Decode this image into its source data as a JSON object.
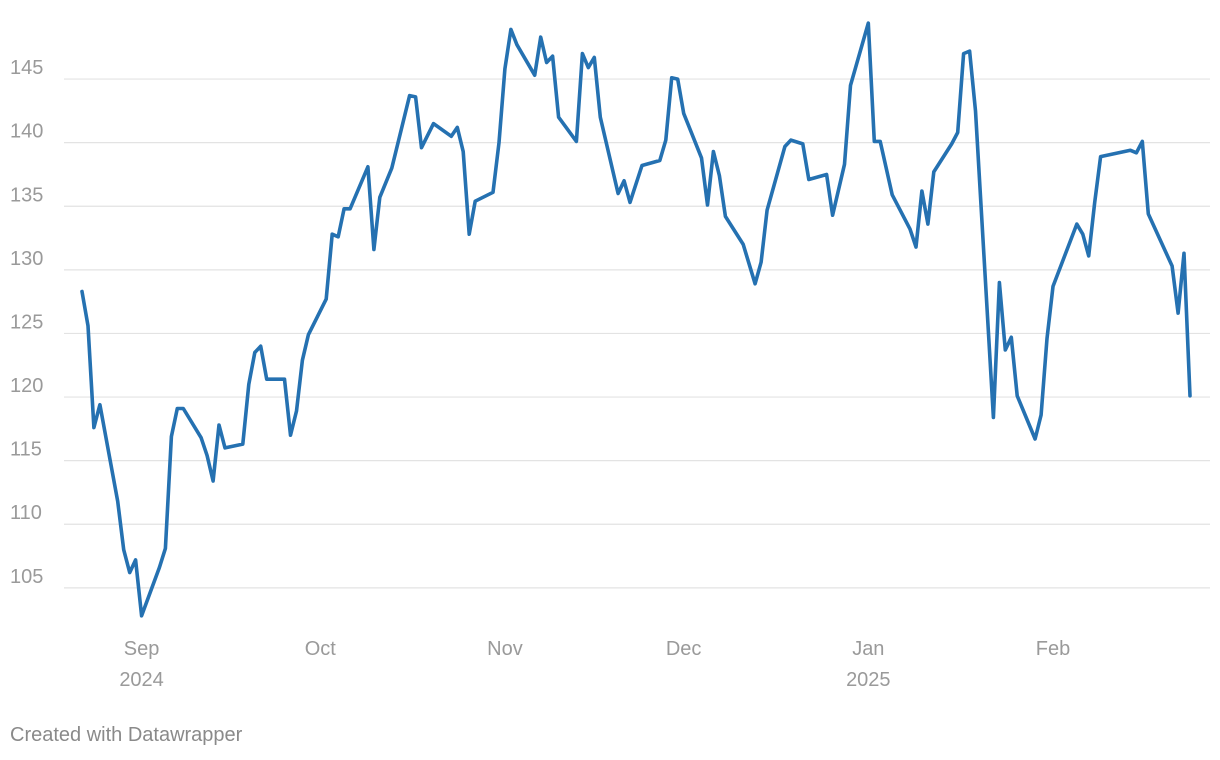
{
  "chart_data": {
    "type": "line",
    "title": "",
    "xlabel": "",
    "ylabel": "",
    "ylim": [
      102,
      149.8
    ],
    "xlim": [
      "2024-08-21",
      "2025-02-27"
    ],
    "grid": true,
    "legend": "none",
    "colors": {
      "line": "#2571b1",
      "grid": "#e3e3e3",
      "tick_text": "#9a9a9a"
    },
    "y_ticks": [
      105,
      110,
      115,
      120,
      125,
      130,
      135,
      140,
      145
    ],
    "x_ticks": [
      {
        "date": "2024-09-01",
        "label": "Sep",
        "sublabel": "2024"
      },
      {
        "date": "2024-10-01",
        "label": "Oct",
        "sublabel": ""
      },
      {
        "date": "2024-11-01",
        "label": "Nov",
        "sublabel": ""
      },
      {
        "date": "2024-12-01",
        "label": "Dec",
        "sublabel": ""
      },
      {
        "date": "2025-01-01",
        "label": "Jan",
        "sublabel": "2025"
      },
      {
        "date": "2025-02-01",
        "label": "Feb",
        "sublabel": ""
      }
    ],
    "series": [
      {
        "points": [
          [
            "2024-08-22",
            128.3
          ],
          [
            "2024-08-23",
            125.6
          ],
          [
            "2024-08-24",
            117.6
          ],
          [
            "2024-08-25",
            119.4
          ],
          [
            "2024-08-28",
            111.8
          ],
          [
            "2024-08-29",
            108.0
          ],
          [
            "2024-08-30",
            106.2
          ],
          [
            "2024-08-31",
            107.2
          ],
          [
            "2024-09-01",
            102.8
          ],
          [
            "2024-09-04",
            106.6
          ],
          [
            "2024-09-05",
            108.1
          ],
          [
            "2024-09-06",
            116.9
          ],
          [
            "2024-09-07",
            119.1
          ],
          [
            "2024-09-08",
            119.1
          ],
          [
            "2024-09-11",
            116.8
          ],
          [
            "2024-09-12",
            115.4
          ],
          [
            "2024-09-13",
            113.4
          ],
          [
            "2024-09-14",
            117.8
          ],
          [
            "2024-09-15",
            116.0
          ],
          [
            "2024-09-18",
            116.3
          ],
          [
            "2024-09-19",
            121.0
          ],
          [
            "2024-09-20",
            123.5
          ],
          [
            "2024-09-21",
            124.0
          ],
          [
            "2024-09-22",
            121.4
          ],
          [
            "2024-09-25",
            121.4
          ],
          [
            "2024-09-26",
            117.0
          ],
          [
            "2024-09-27",
            118.9
          ],
          [
            "2024-09-28",
            122.9
          ],
          [
            "2024-09-29",
            124.9
          ],
          [
            "2024-10-02",
            127.7
          ],
          [
            "2024-10-03",
            132.8
          ],
          [
            "2024-10-04",
            132.6
          ],
          [
            "2024-10-05",
            134.8
          ],
          [
            "2024-10-06",
            134.8
          ],
          [
            "2024-10-09",
            138.1
          ],
          [
            "2024-10-10",
            131.6
          ],
          [
            "2024-10-11",
            135.7
          ],
          [
            "2024-10-13",
            138.0
          ],
          [
            "2024-10-16",
            143.7
          ],
          [
            "2024-10-17",
            143.6
          ],
          [
            "2024-10-18",
            139.6
          ],
          [
            "2024-10-20",
            141.5
          ],
          [
            "2024-10-23",
            140.5
          ],
          [
            "2024-10-24",
            141.2
          ],
          [
            "2024-10-25",
            139.3
          ],
          [
            "2024-10-26",
            132.8
          ],
          [
            "2024-10-27",
            135.4
          ],
          [
            "2024-10-30",
            136.1
          ],
          [
            "2024-10-31",
            140.0
          ],
          [
            "2024-11-01",
            145.8
          ],
          [
            "2024-11-02",
            148.9
          ],
          [
            "2024-11-03",
            147.7
          ],
          [
            "2024-11-06",
            145.3
          ],
          [
            "2024-11-07",
            148.3
          ],
          [
            "2024-11-08",
            146.3
          ],
          [
            "2024-11-09",
            146.8
          ],
          [
            "2024-11-10",
            142.0
          ],
          [
            "2024-11-13",
            140.1
          ],
          [
            "2024-11-14",
            147.0
          ],
          [
            "2024-11-15",
            145.9
          ],
          [
            "2024-11-16",
            146.7
          ],
          [
            "2024-11-17",
            142.0
          ],
          [
            "2024-11-20",
            136.0
          ],
          [
            "2024-11-21",
            137.0
          ],
          [
            "2024-11-22",
            135.3
          ],
          [
            "2024-11-24",
            138.2
          ],
          [
            "2024-11-27",
            138.6
          ],
          [
            "2024-11-28",
            140.2
          ],
          [
            "2024-11-29",
            145.1
          ],
          [
            "2024-11-30",
            145.0
          ],
          [
            "2024-12-01",
            142.3
          ],
          [
            "2024-12-04",
            138.8
          ],
          [
            "2024-12-05",
            135.1
          ],
          [
            "2024-12-06",
            139.3
          ],
          [
            "2024-12-07",
            137.4
          ],
          [
            "2024-12-08",
            134.2
          ],
          [
            "2024-12-11",
            132.0
          ],
          [
            "2024-12-13",
            128.9
          ],
          [
            "2024-12-14",
            130.6
          ],
          [
            "2024-12-15",
            134.7
          ],
          [
            "2024-12-18",
            139.7
          ],
          [
            "2024-12-19",
            140.2
          ],
          [
            "2024-12-21",
            139.9
          ],
          [
            "2024-12-22",
            137.1
          ],
          [
            "2024-12-25",
            137.5
          ],
          [
            "2024-12-26",
            134.3
          ],
          [
            "2024-12-28",
            138.3
          ],
          [
            "2024-12-29",
            144.5
          ],
          [
            "2025-01-01",
            149.4
          ],
          [
            "2025-01-02",
            140.1
          ],
          [
            "2025-01-03",
            140.1
          ],
          [
            "2025-01-05",
            135.9
          ],
          [
            "2025-01-08",
            133.2
          ],
          [
            "2025-01-09",
            131.8
          ],
          [
            "2025-01-10",
            136.2
          ],
          [
            "2025-01-11",
            133.6
          ],
          [
            "2025-01-12",
            137.7
          ],
          [
            "2025-01-15",
            139.9
          ],
          [
            "2025-01-16",
            140.8
          ],
          [
            "2025-01-17",
            147.0
          ],
          [
            "2025-01-18",
            147.2
          ],
          [
            "2025-01-19",
            142.5
          ],
          [
            "2025-01-22",
            118.4
          ],
          [
            "2025-01-23",
            129.0
          ],
          [
            "2025-01-24",
            123.7
          ],
          [
            "2025-01-25",
            124.7
          ],
          [
            "2025-01-26",
            120.1
          ],
          [
            "2025-01-29",
            116.7
          ],
          [
            "2025-01-30",
            118.6
          ],
          [
            "2025-01-31",
            124.6
          ],
          [
            "2025-02-01",
            128.7
          ],
          [
            "2025-02-05",
            133.6
          ],
          [
            "2025-02-06",
            132.8
          ],
          [
            "2025-02-07",
            131.1
          ],
          [
            "2025-02-08",
            135.3
          ],
          [
            "2025-02-09",
            138.9
          ],
          [
            "2025-02-14",
            139.4
          ],
          [
            "2025-02-15",
            139.2
          ],
          [
            "2025-02-16",
            140.1
          ],
          [
            "2025-02-17",
            134.4
          ],
          [
            "2025-02-21",
            130.3
          ],
          [
            "2025-02-22",
            126.6
          ],
          [
            "2025-02-23",
            131.3
          ],
          [
            "2025-02-24",
            120.1
          ]
        ]
      }
    ]
  },
  "credit": "Created with Datawrapper"
}
